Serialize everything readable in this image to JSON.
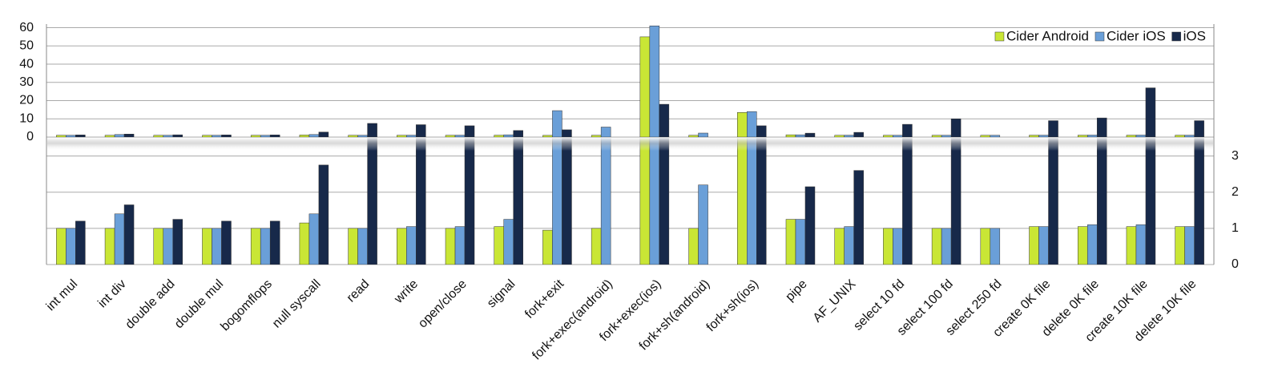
{
  "chart_data": {
    "type": "bar",
    "broken_axis": true,
    "categories": [
      "int mul",
      "int div",
      "double add",
      "double mul",
      "bogomflops",
      "null syscall",
      "read",
      "write",
      "open/close",
      "signal",
      "fork+exit",
      "fork+exec(android)",
      "fork+exec(ios)",
      "fork+sh(android)",
      "fork+sh(ios)",
      "pipe",
      "AF_UNIX",
      "select 10 fd",
      "select 100 fd",
      "select 250 fd",
      "create 0K file",
      "delete 0K file",
      "create 10K file",
      "delete 10K file"
    ],
    "series": [
      {
        "name": "Cider Android",
        "color": "#c9e635",
        "values": [
          1,
          1,
          1,
          1,
          1,
          1.15,
          1,
          1,
          1,
          1.05,
          0.95,
          1,
          55,
          1,
          13.5,
          1.25,
          1,
          1,
          1,
          1,
          1.05,
          1.05,
          1.05,
          1.05
        ]
      },
      {
        "name": "Cider iOS",
        "color": "#6a9fd8",
        "values": [
          1,
          1.4,
          1,
          1,
          1,
          1.4,
          1,
          1.05,
          1.05,
          1.25,
          14.5,
          5.5,
          61,
          2.2,
          14,
          1.25,
          1.05,
          1,
          1,
          1,
          1.05,
          1.1,
          1.1,
          1.05
        ]
      },
      {
        "name": "iOS",
        "color": "#17294a",
        "values": [
          1.2,
          1.65,
          1.25,
          1.2,
          1.2,
          2.75,
          7.5,
          6.8,
          6.2,
          3.6,
          4,
          null,
          18,
          null,
          6.2,
          2.15,
          2.6,
          7,
          10,
          null,
          9,
          10.5,
          27,
          9
        ]
      }
    ],
    "ylim": [
      0,
      62
    ],
    "yticks": [
      0,
      10,
      20,
      30,
      40,
      50,
      60
    ],
    "y2lim": [
      0,
      3.5
    ],
    "y2ticks": [
      0,
      1,
      2,
      3
    ],
    "grid": true,
    "legend": "top-right"
  }
}
